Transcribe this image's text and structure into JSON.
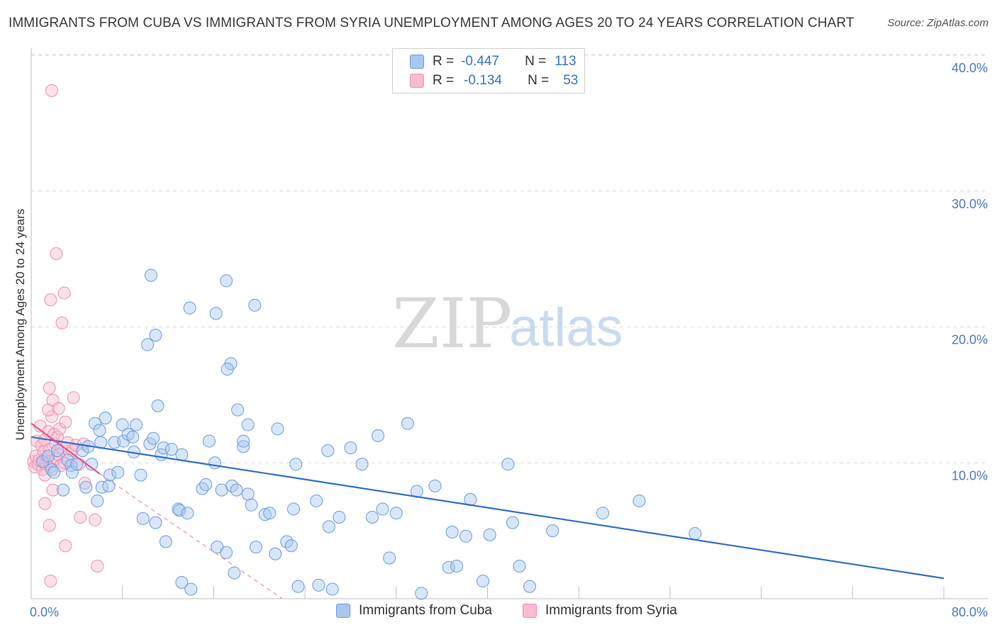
{
  "header": {
    "title": "IMMIGRANTS FROM CUBA VS IMMIGRANTS FROM SYRIA UNEMPLOYMENT AMONG AGES 20 TO 24 YEARS CORRELATION CHART",
    "source": "Source: ZipAtlas.com"
  },
  "watermark": {
    "zip": "ZIP",
    "atlas": "atlas"
  },
  "legend": {
    "rows": [
      {
        "r_label": "R =",
        "r_value": "-0.447",
        "n_label": "N =",
        "n_value": "113",
        "color": "#a9c7ef",
        "border": "#6b9be0"
      },
      {
        "r_label": "R =",
        "r_value": "-0.134",
        "n_label": "N =",
        "n_value": "53",
        "color": "#f7bcd0",
        "border": "#ee8fb0"
      }
    ]
  },
  "bottom_legend": {
    "cuba": "Immigrants from Cuba",
    "syria": "Immigrants from Syria"
  },
  "colors": {
    "cuba_fill": "#a9c7ef",
    "cuba_stroke": "#6b9be0",
    "cuba_line": "#2f6fd0",
    "syria_fill": "#f7bcd0",
    "syria_stroke": "#ee8fb0",
    "syria_line": "#e0588a",
    "grid": "#dcdcdc",
    "tick_label": "#4a7cc7"
  },
  "chart_data": {
    "type": "scatter",
    "title": "IMMIGRANTS FROM CUBA VS IMMIGRANTS FROM SYRIA UNEMPLOYMENT AMONG AGES 20 TO 24 YEARS CORRELATION CHART",
    "ylabel": "Unemployment Among Ages 20 to 24 years",
    "xlabel": "",
    "xlim": [
      0,
      80
    ],
    "ylim": [
      0,
      40
    ],
    "x_tick_labels": [
      "0.0%",
      "80.0%"
    ],
    "y_ticks": [
      10,
      20,
      30,
      40
    ],
    "y_tick_labels": [
      "10.0%",
      "20.0%",
      "30.0%",
      "40.0%"
    ],
    "grid": "horizontal dashed",
    "legend_position": "top-center",
    "series": [
      {
        "name": "Immigrants from Cuba",
        "trend": {
          "x": [
            0,
            80
          ],
          "y": [
            11.9,
            1.5
          ]
        },
        "points": [
          [
            1.0,
            10.1
          ],
          [
            1.5,
            10.5
          ],
          [
            1.8,
            9.5
          ],
          [
            2.0,
            9.3
          ],
          [
            2.3,
            10.9
          ],
          [
            2.8,
            8.0
          ],
          [
            3.2,
            10.2
          ],
          [
            3.5,
            9.8
          ],
          [
            3.6,
            9.3
          ],
          [
            4.0,
            9.9
          ],
          [
            4.5,
            10.9
          ],
          [
            4.8,
            8.2
          ],
          [
            5.0,
            11.2
          ],
          [
            5.3,
            9.9
          ],
          [
            5.6,
            12.9
          ],
          [
            5.8,
            7.2
          ],
          [
            6.0,
            12.4
          ],
          [
            6.1,
            11.5
          ],
          [
            6.2,
            8.2
          ],
          [
            6.5,
            13.3
          ],
          [
            6.8,
            8.3
          ],
          [
            6.9,
            9.1
          ],
          [
            7.3,
            11.5
          ],
          [
            7.6,
            9.3
          ],
          [
            8.0,
            12.8
          ],
          [
            8.1,
            11.6
          ],
          [
            8.5,
            12.1
          ],
          [
            8.9,
            11.9
          ],
          [
            9.0,
            10.8
          ],
          [
            9.2,
            12.8
          ],
          [
            9.6,
            9.1
          ],
          [
            9.8,
            5.9
          ],
          [
            10.4,
            11.4
          ],
          [
            10.7,
            11.8
          ],
          [
            10.9,
            5.6
          ],
          [
            11.1,
            14.2
          ],
          [
            11.4,
            10.6
          ],
          [
            11.6,
            11.1
          ],
          [
            11.8,
            4.2
          ],
          [
            12.3,
            11.0
          ],
          [
            12.9,
            6.6
          ],
          [
            13.0,
            6.5
          ],
          [
            13.2,
            10.6
          ],
          [
            13.7,
            6.3
          ],
          [
            13.2,
            1.2
          ],
          [
            14.0,
            0.7
          ],
          [
            15.0,
            8.1
          ],
          [
            15.3,
            8.4
          ],
          [
            15.6,
            11.6
          ],
          [
            16.1,
            10.0
          ],
          [
            16.3,
            3.8
          ],
          [
            16.7,
            8.0
          ],
          [
            17.1,
            3.4
          ],
          [
            17.6,
            8.3
          ],
          [
            17.8,
            1.9
          ],
          [
            18.6,
            11.2
          ],
          [
            18.0,
            8.0
          ],
          [
            18.6,
            11.6
          ],
          [
            19.0,
            7.7
          ],
          [
            19.3,
            6.9
          ],
          [
            19.7,
            3.8
          ],
          [
            20.5,
            6.2
          ],
          [
            20.9,
            6.3
          ],
          [
            21.4,
            3.3
          ],
          [
            21.6,
            12.5
          ],
          [
            22.4,
            4.2
          ],
          [
            22.8,
            3.9
          ],
          [
            23.0,
            6.6
          ],
          [
            23.2,
            9.9
          ],
          [
            23.4,
            0.9
          ],
          [
            25.0,
            7.2
          ],
          [
            25.2,
            1.0
          ],
          [
            26.0,
            10.9
          ],
          [
            26.1,
            5.3
          ],
          [
            26.4,
            0.7
          ],
          [
            27.0,
            6.0
          ],
          [
            28.0,
            11.1
          ],
          [
            29.0,
            9.9
          ],
          [
            29.9,
            6.0
          ],
          [
            30.4,
            12.0
          ],
          [
            30.8,
            6.6
          ],
          [
            31.4,
            3.0
          ],
          [
            32.0,
            6.3
          ],
          [
            33.0,
            12.9
          ],
          [
            33.8,
            7.9
          ],
          [
            34.2,
            0.4
          ],
          [
            35.4,
            8.3
          ],
          [
            36.6,
            2.3
          ],
          [
            36.9,
            4.9
          ],
          [
            37.3,
            2.4
          ],
          [
            38.1,
            4.6
          ],
          [
            38.5,
            7.3
          ],
          [
            39.6,
            1.3
          ],
          [
            40.2,
            4.7
          ],
          [
            41.8,
            9.9
          ],
          [
            42.2,
            5.6
          ],
          [
            42.8,
            2.4
          ],
          [
            43.7,
            0.9
          ],
          [
            45.7,
            5.0
          ],
          [
            50.1,
            6.3
          ],
          [
            53.3,
            7.2
          ],
          [
            58.2,
            4.8
          ],
          [
            10.2,
            18.7
          ],
          [
            10.9,
            19.4
          ],
          [
            10.5,
            23.8
          ],
          [
            13.9,
            21.4
          ],
          [
            16.2,
            21.0
          ],
          [
            17.1,
            23.4
          ],
          [
            19.6,
            21.6
          ],
          [
            17.5,
            17.3
          ],
          [
            17.2,
            16.9
          ],
          [
            18.1,
            13.9
          ],
          [
            19.0,
            12.8
          ]
        ]
      },
      {
        "name": "Immigrants from Syria",
        "trend": {
          "x": [
            0,
            6.0
          ],
          "y": [
            12.9,
            9.2
          ]
        },
        "trend_dashed": {
          "x": [
            6.0,
            22.0
          ],
          "y": [
            9.2,
            0.0
          ]
        },
        "points": [
          [
            0.2,
            10.1
          ],
          [
            0.3,
            9.7
          ],
          [
            0.4,
            10.5
          ],
          [
            0.5,
            11.6
          ],
          [
            0.6,
            9.9
          ],
          [
            0.7,
            10.2
          ],
          [
            0.8,
            12.7
          ],
          [
            0.9,
            11.3
          ],
          [
            1.0,
            9.5
          ],
          [
            1.1,
            10.8
          ],
          [
            1.2,
            11.7
          ],
          [
            1.3,
            9.9
          ],
          [
            1.4,
            10.4
          ],
          [
            1.5,
            12.3
          ],
          [
            1.6,
            11.0
          ],
          [
            1.7,
            9.7
          ],
          [
            1.8,
            13.4
          ],
          [
            1.9,
            10.1
          ],
          [
            2.0,
            12.1
          ],
          [
            2.1,
            11.4
          ],
          [
            2.2,
            10.3
          ],
          [
            2.3,
            11.9
          ],
          [
            2.4,
            10.6
          ],
          [
            2.5,
            12.5
          ],
          [
            2.6,
            9.8
          ],
          [
            2.7,
            11.1
          ],
          [
            2.9,
            10.0
          ],
          [
            3.0,
            13.0
          ],
          [
            3.2,
            11.5
          ],
          [
            3.4,
            10.7
          ],
          [
            3.6,
            10.9
          ],
          [
            3.9,
            11.3
          ],
          [
            4.2,
            9.9
          ],
          [
            4.6,
            11.4
          ],
          [
            1.2,
            9.1
          ],
          [
            1.5,
            13.9
          ],
          [
            1.9,
            14.6
          ],
          [
            2.4,
            14.0
          ],
          [
            1.6,
            15.5
          ],
          [
            3.7,
            14.8
          ],
          [
            1.2,
            7.0
          ],
          [
            1.6,
            5.4
          ],
          [
            1.9,
            8.0
          ],
          [
            3.0,
            3.9
          ],
          [
            4.7,
            8.5
          ],
          [
            4.3,
            6.0
          ],
          [
            5.6,
            5.8
          ],
          [
            5.8,
            2.4
          ],
          [
            1.7,
            1.3
          ],
          [
            1.7,
            22.0
          ],
          [
            2.2,
            25.4
          ],
          [
            2.9,
            22.5
          ],
          [
            2.7,
            20.3
          ],
          [
            1.8,
            37.4
          ]
        ]
      }
    ]
  }
}
